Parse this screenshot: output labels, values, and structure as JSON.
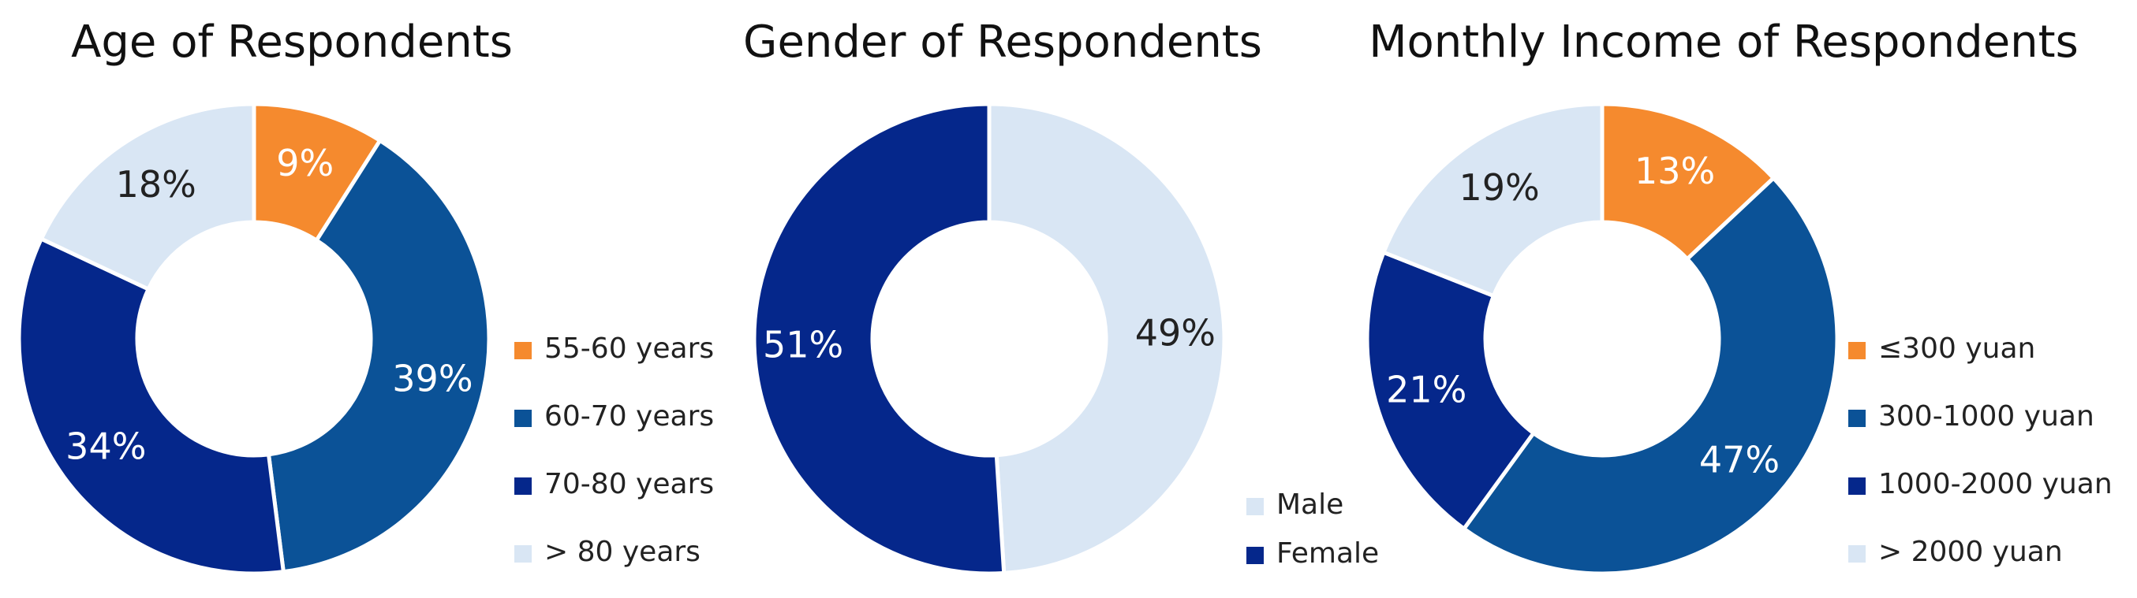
{
  "chart_data": [
    {
      "type": "pie",
      "title": "Age of Respondents",
      "categories": [
        "55-60 years",
        "60-70 years",
        "70-80 years",
        "> 80 years"
      ],
      "values": [
        9,
        39,
        34,
        18
      ],
      "labels": [
        "9%",
        "39%",
        "34%",
        "18%"
      ],
      "colors": [
        "#f58a2e",
        "#0b5297",
        "#05278b",
        "#d9e6f4"
      ],
      "label_colors": [
        "#ffffff",
        "#ffffff",
        "#ffffff",
        "#222222"
      ],
      "donut": true,
      "legend": "right"
    },
    {
      "type": "pie",
      "title": "Gender of Respondents",
      "categories": [
        "Male",
        "Female"
      ],
      "values": [
        49,
        51
      ],
      "labels": [
        "49%",
        "51%"
      ],
      "colors": [
        "#d9e6f4",
        "#05278b"
      ],
      "label_colors": [
        "#222222",
        "#ffffff"
      ],
      "donut": true,
      "legend": "bottom-right"
    },
    {
      "type": "pie",
      "title": "Monthly Income of Respondents",
      "categories": [
        "≤300 yuan",
        "300-1000 yuan",
        "1000-2000 yuan",
        "> 2000 yuan"
      ],
      "values": [
        13,
        47,
        21,
        19
      ],
      "labels": [
        "13%",
        "47%",
        "21%",
        "19%"
      ],
      "colors": [
        "#f58a2e",
        "#0b5297",
        "#05278b",
        "#d9e6f4"
      ],
      "label_colors": [
        "#ffffff",
        "#ffffff",
        "#ffffff",
        "#222222"
      ],
      "donut": true,
      "legend": "right"
    }
  ]
}
